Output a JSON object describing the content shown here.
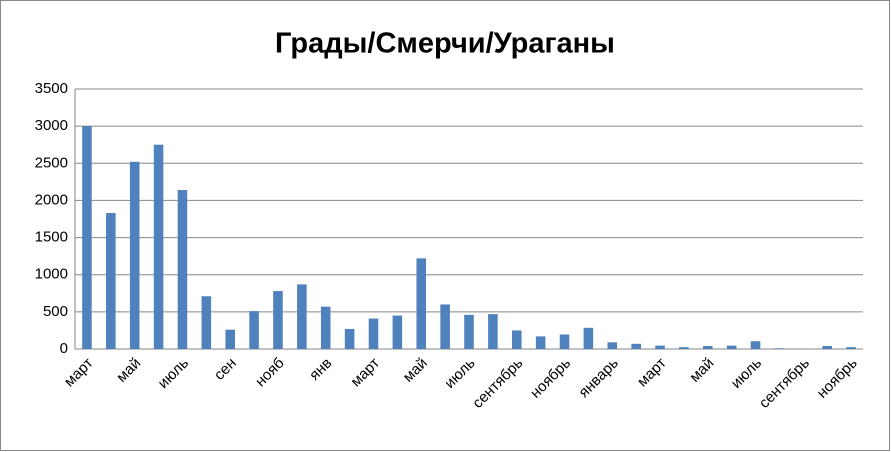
{
  "chart_data": {
    "type": "bar",
    "title": "Грады/Смерчи/Ураганы",
    "categories": [
      "март",
      null,
      "май",
      null,
      "июль",
      null,
      "сен",
      null,
      "нояб",
      null,
      "янв",
      null,
      "март",
      null,
      "май",
      null,
      "июль",
      null,
      "сентябрь",
      null,
      "ноябрь",
      null,
      "январь",
      null,
      "март",
      null,
      "май",
      null,
      "июль",
      null,
      "сентябрь",
      null,
      "ноябрь"
    ],
    "values": [
      3000,
      1830,
      2520,
      2750,
      2140,
      710,
      260,
      510,
      780,
      870,
      570,
      270,
      410,
      450,
      1220,
      600,
      460,
      470,
      250,
      170,
      195,
      285,
      90,
      70,
      45,
      25,
      40,
      45,
      105,
      10,
      0,
      40,
      25
    ],
    "color": "#4f81bd",
    "ylim": [
      0,
      3500
    ],
    "yticks": [
      0,
      500,
      1000,
      1500,
      2000,
      2500,
      3000,
      3500
    ],
    "grid": true
  }
}
